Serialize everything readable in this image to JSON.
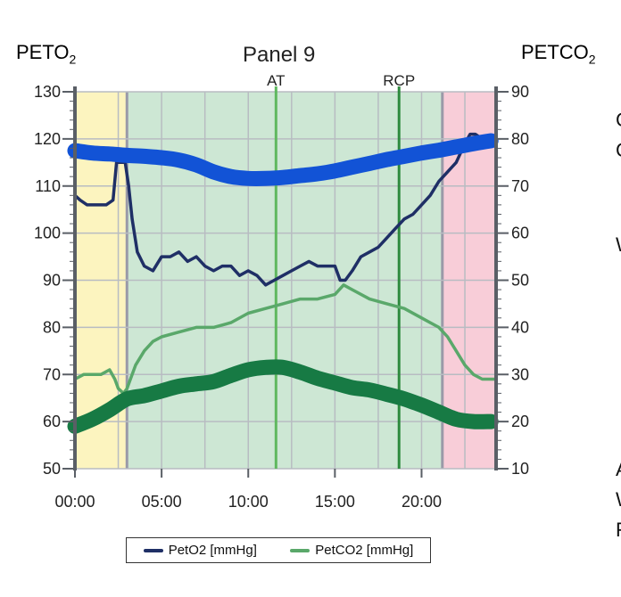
{
  "left_axis_title": {
    "main": "PETO",
    "sub": "2"
  },
  "right_axis_title": {
    "main": "PETCO",
    "sub": "2"
  },
  "cut_off_letters": [
    "C",
    "C",
    "W",
    "A",
    "W",
    "F"
  ],
  "chart_data": {
    "type": "line",
    "title": "Panel 9",
    "x_tick_labels": [
      "00:00",
      "05:00",
      "10:00",
      "15:00",
      "20:00"
    ],
    "x_ticks_min": [
      0,
      5,
      10,
      15,
      20
    ],
    "xlim_min": [
      0,
      24.3
    ],
    "y_left": {
      "label": "PETO2",
      "ylim": [
        50,
        130
      ],
      "ticks": [
        50,
        60,
        70,
        80,
        90,
        100,
        110,
        120,
        130
      ]
    },
    "y_right": {
      "label": "PETCO2",
      "ylim": [
        10,
        90
      ],
      "ticks": [
        10,
        20,
        30,
        40,
        50,
        60,
        70,
        80,
        90
      ]
    },
    "zones": [
      {
        "from": 0,
        "to": 3.0,
        "color": "#fcf4bf"
      },
      {
        "from": 3.0,
        "to": 21.2,
        "color": "#cde7d4"
      },
      {
        "from": 21.2,
        "to": 24.3,
        "color": "#f8cdd8"
      }
    ],
    "thresholds": [
      {
        "label": "AT",
        "x": 11.6,
        "color": "#5fb85f"
      },
      {
        "label": "RCP",
        "x": 18.7,
        "color": "#2e8a3e"
      }
    ],
    "grid": true,
    "legend_position": "bottom",
    "series": [
      {
        "name": "PetO2 [mmHg]",
        "axis": "left",
        "color": "#1f2f66",
        "x": [
          0,
          0.3,
          0.7,
          1.2,
          1.8,
          2.2,
          2.4,
          2.6,
          2.9,
          3.1,
          3.3,
          3.6,
          4.0,
          4.5,
          5.0,
          5.5,
          6.0,
          6.5,
          7.0,
          7.5,
          8.0,
          8.5,
          9.0,
          9.5,
          10.0,
          10.5,
          11.0,
          11.5,
          12.0,
          12.5,
          13.0,
          13.5,
          14.0,
          14.5,
          15.0,
          15.3,
          15.6,
          16.0,
          16.5,
          17.0,
          17.5,
          18.0,
          18.5,
          19.0,
          19.5,
          20.0,
          20.5,
          21.0,
          21.5,
          22.0,
          22.5,
          22.8,
          23.1,
          23.5,
          24.0,
          24.3
        ],
        "y": [
          108,
          107,
          106,
          106,
          106,
          107,
          115,
          115,
          115,
          110,
          103,
          96,
          93,
          92,
          95,
          95,
          96,
          94,
          95,
          93,
          92,
          93,
          93,
          91,
          92,
          91,
          89,
          90,
          91,
          92,
          93,
          94,
          93,
          93,
          93,
          90,
          90,
          92,
          95,
          96,
          97,
          99,
          101,
          103,
          104,
          106,
          108,
          111,
          113,
          115,
          119,
          121,
          121,
          120,
          120,
          120
        ]
      },
      {
        "name": "PetCO2 [mmHg]",
        "axis": "right",
        "color": "#5aa86a",
        "x": [
          0,
          0.5,
          1.0,
          1.5,
          2.0,
          2.3,
          2.5,
          2.8,
          3.0,
          3.5,
          4.0,
          4.5,
          5.0,
          6.0,
          7.0,
          8.0,
          9.0,
          10.0,
          11.0,
          12.0,
          13.0,
          14.0,
          15.0,
          15.5,
          16.0,
          17.0,
          18.0,
          19.0,
          20.0,
          20.5,
          21.0,
          21.5,
          22.0,
          22.5,
          23.0,
          23.5,
          24.0,
          24.3
        ],
        "y": [
          29,
          30,
          30,
          30,
          31,
          29,
          27,
          26,
          27,
          32,
          35,
          37,
          38,
          39,
          40,
          40,
          41,
          43,
          44,
          45,
          46,
          46,
          47,
          49,
          48,
          46,
          45,
          44,
          42,
          41,
          40,
          38,
          35,
          32,
          30,
          29,
          29,
          29
        ]
      }
    ],
    "annotation_curves": [
      {
        "axis": "left",
        "color": "#1253d6",
        "x": [
          0,
          1,
          2,
          3,
          4,
          5,
          6,
          7,
          8,
          9,
          10,
          11,
          12,
          13,
          14,
          15,
          16,
          17,
          18,
          19,
          20,
          21,
          22,
          23,
          24
        ],
        "y": [
          117.5,
          117,
          116.8,
          116.5,
          116.3,
          116,
          115.5,
          114.5,
          113,
          112,
          111.6,
          111.6,
          111.8,
          112.2,
          112.6,
          113.2,
          114,
          114.8,
          115.6,
          116.3,
          117,
          117.6,
          118.3,
          119,
          119.6
        ]
      },
      {
        "axis": "right",
        "color": "#177a44",
        "x": [
          0,
          1,
          2,
          3,
          4,
          5,
          6,
          7,
          8,
          9,
          10,
          11,
          12,
          13,
          14,
          15,
          16,
          17,
          18,
          19,
          20,
          21,
          22,
          23,
          24
        ],
        "y": [
          19,
          20.5,
          22.5,
          24.8,
          25.5,
          26.5,
          27.5,
          28,
          28.5,
          29.8,
          31,
          31.5,
          31.5,
          30.5,
          29.2,
          28.2,
          27.2,
          26.7,
          25.8,
          24.8,
          23.5,
          22,
          20.5,
          20,
          20
        ]
      }
    ]
  }
}
